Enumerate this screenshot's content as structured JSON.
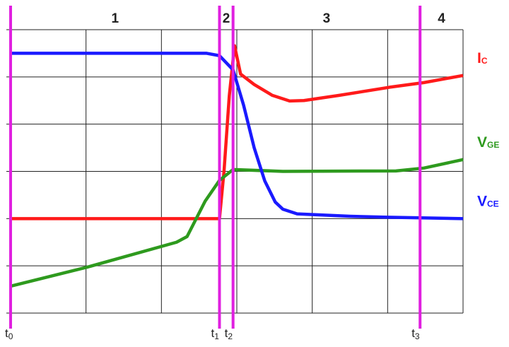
{
  "chart_data": {
    "type": "line",
    "xlim": [
      0,
      6
    ],
    "ylim": [
      0,
      6
    ],
    "xticks": [
      0,
      1,
      2,
      3,
      4,
      5,
      6
    ],
    "yticks": [
      0,
      1,
      2,
      3,
      4,
      5,
      6
    ],
    "grid": true,
    "series": [
      {
        "name": "IC",
        "color": "#ff1a1a",
        "x": [
          0,
          2.77,
          2.83,
          2.9,
          2.97,
          3.05,
          3.23,
          3.47,
          3.7,
          3.89,
          4.36,
          5.02,
          5.48,
          6
        ],
        "values": [
          2.0,
          2.0,
          3.0,
          4.6,
          5.66,
          5.06,
          4.84,
          4.61,
          4.49,
          4.5,
          4.61,
          4.78,
          4.88,
          5.03
        ]
      },
      {
        "name": "VGE",
        "color": "#2e9a1e",
        "x": [
          0,
          1.01,
          2.2,
          2.34,
          2.58,
          2.77,
          2.95,
          3.61,
          5.11,
          5.48,
          6
        ],
        "values": [
          0.57,
          0.97,
          1.5,
          1.62,
          2.37,
          2.81,
          3.04,
          3.0,
          3.01,
          3.07,
          3.25
        ]
      },
      {
        "name": "VCE",
        "color": "#1a1aff",
        "x": [
          0,
          2.6,
          2.77,
          2.95,
          3.09,
          3.23,
          3.37,
          3.51,
          3.61,
          3.8,
          4.5,
          5.0,
          6
        ],
        "values": [
          5.5,
          5.5,
          5.45,
          5.15,
          4.4,
          3.5,
          2.8,
          2.35,
          2.2,
          2.1,
          2.05,
          2.03,
          2.0
        ]
      }
    ],
    "markers": [
      {
        "label": "t0",
        "x": 0
      },
      {
        "label": "t1",
        "x": 2.77
      },
      {
        "label": "t2",
        "x": 2.95
      },
      {
        "label": "t3",
        "x": 5.43
      }
    ],
    "marker_color": "#e020e0",
    "regions": [
      "1",
      "2",
      "3",
      "4"
    ]
  }
}
